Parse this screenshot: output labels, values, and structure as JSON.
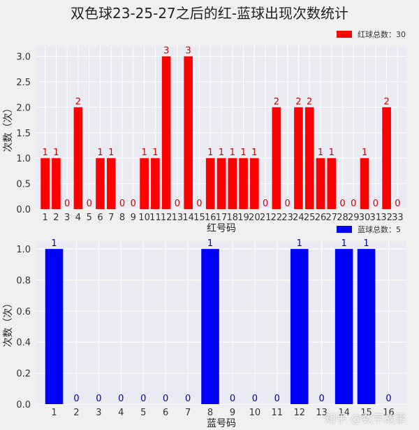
{
  "title": "双色球23-25-27之后的红-蓝球出现次数统计",
  "watermark": "知乎 @数字故事",
  "colors": {
    "background": "#f0f0f0",
    "plot_bg": "#eaeaf2",
    "grid": "#ffffff",
    "red": "#ff0000",
    "blue": "#0000ff",
    "red_label": "#cc0000",
    "blue_label": "#000099"
  },
  "chart_data": [
    {
      "type": "bar",
      "color": "#ff0000",
      "categories": [
        "1",
        "2",
        "3",
        "4",
        "5",
        "6",
        "7",
        "8",
        "9",
        "10",
        "11",
        "12",
        "13",
        "14",
        "15",
        "16",
        "17",
        "18",
        "19",
        "20",
        "21",
        "22",
        "23",
        "24",
        "25",
        "26",
        "27",
        "28",
        "29",
        "30",
        "31",
        "32",
        "33"
      ],
      "values": [
        1,
        1,
        0,
        2,
        0,
        1,
        1,
        0,
        0,
        1,
        1,
        3,
        0,
        3,
        0,
        1,
        1,
        1,
        1,
        1,
        0,
        2,
        0,
        2,
        2,
        1,
        1,
        0,
        0,
        1,
        0,
        2,
        0
      ],
      "xlabel": "红号码",
      "ylabel": "次数（次）",
      "ylim": [
        0,
        3.2
      ],
      "yticks": [
        "0.0",
        "0.5",
        "1.0",
        "1.5",
        "2.0",
        "2.5",
        "3.0"
      ],
      "grid": true,
      "legend_position": "top-right",
      "legend": "红球总数：30"
    },
    {
      "type": "bar",
      "color": "#0000ff",
      "categories": [
        "1",
        "2",
        "3",
        "4",
        "5",
        "6",
        "7",
        "8",
        "9",
        "10",
        "11",
        "12",
        "13",
        "14",
        "15",
        "16"
      ],
      "values": [
        1,
        0,
        0,
        0,
        0,
        0,
        0,
        1,
        0,
        0,
        0,
        1,
        0,
        1,
        1,
        0
      ],
      "xlabel": "蓝号码",
      "ylabel": "次数（次）",
      "ylim": [
        0,
        1.05
      ],
      "yticks": [
        "0.0",
        "0.2",
        "0.4",
        "0.6",
        "0.8",
        "1.0"
      ],
      "grid": true,
      "legend_position": "top-right",
      "legend": "蓝球总数：5"
    }
  ]
}
